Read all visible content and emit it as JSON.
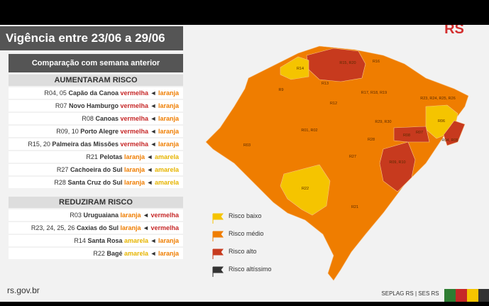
{
  "header": {
    "title": "Vigência entre 23/06 a 29/06",
    "subtitle": "Comparação com semana anterior"
  },
  "arrow": "◄",
  "increased": {
    "title": "AUMENTARAM RISCO",
    "rows": [
      {
        "region": "R04, 05",
        "name": "Capão da Canoa",
        "from": "vermelha",
        "to": "laranja"
      },
      {
        "region": "R07",
        "name": "Novo Hamburgo",
        "from": "vermelha",
        "to": "laranja"
      },
      {
        "region": "R08",
        "name": "Canoas",
        "from": "vermelha",
        "to": "laranja"
      },
      {
        "region": "R09, 10",
        "name": "Porto Alegre",
        "from": "vermelha",
        "to": "laranja"
      },
      {
        "region": "R15, 20",
        "name": "Palmeira das Missões",
        "from": "vermelha",
        "to": "laranja"
      },
      {
        "region": "R21",
        "name": "Pelotas",
        "from": "laranja",
        "to": "amarela"
      },
      {
        "region": "R27",
        "name": "Cachoeira do Sul",
        "from": "laranja",
        "to": "amarela"
      },
      {
        "region": "R28",
        "name": "Santa Cruz do Sul",
        "from": "laranja",
        "to": "amarela"
      }
    ]
  },
  "decreased": {
    "title": "REDUZIRAM RISCO",
    "rows": [
      {
        "region": "R03",
        "name": "Uruguaiana",
        "from": "laranja",
        "to": "vermelha"
      },
      {
        "region": "R23, 24, 25, 26",
        "name": "Caxias do Sul",
        "from": "laranja",
        "to": "vermelha"
      },
      {
        "region": "R14",
        "name": "Santa Rosa",
        "from": "amarela",
        "to": "laranja"
      },
      {
        "region": "R22",
        "name": "Bagé",
        "from": "amarela",
        "to": "laranja"
      }
    ]
  },
  "map": {
    "labels": [
      "R14",
      "R15, R20",
      "R16",
      "R13",
      "R9",
      "R12",
      "R17, R18, R19",
      "R23, R24, R25, R26",
      "R01, R02",
      "R06",
      "R29, R30",
      "R08",
      "R07",
      "R04, R05",
      "R03",
      "R28",
      "R09, R10",
      "R27",
      "R22",
      "R21"
    ]
  },
  "legend": [
    "Risco baixo",
    "Risco médio",
    "Risco alto",
    "Risco altíssimo"
  ],
  "logo": "RS",
  "footer": {
    "site": "rs.gov.br",
    "credit": "SEPLAG RS | SES RS"
  }
}
